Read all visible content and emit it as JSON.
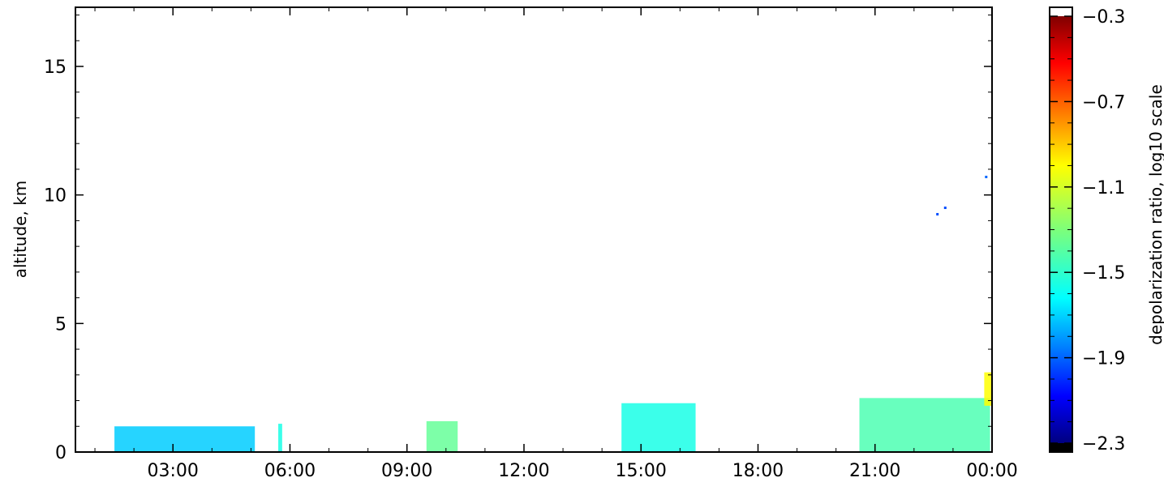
{
  "chart_data": {
    "type": "heatmap",
    "title": "",
    "xlabel": "",
    "ylabel": "altitude, km",
    "x_tick_labels": [
      "03:00",
      "06:00",
      "09:00",
      "12:00",
      "15:00",
      "18:00",
      "21:00",
      "00:00"
    ],
    "x_ticks_hours": [
      3,
      6,
      9,
      12,
      15,
      18,
      21,
      24
    ],
    "xlim_hours": [
      0.5,
      24
    ],
    "y_ticks": [
      0,
      5,
      10,
      15
    ],
    "ylim": [
      0,
      17.3
    ],
    "colorbar": {
      "label": "depolarization ratio, log10 scale",
      "tick_labels": [
        "−0.3",
        "−0.7",
        "−1.1",
        "−1.5",
        "−1.9",
        "−2.3"
      ],
      "ticks": [
        -0.3,
        -0.7,
        -1.1,
        -1.5,
        -1.9,
        -2.3
      ],
      "range": [
        -2.3,
        -0.3
      ],
      "colormap": "jet",
      "over_color": "#ffffff",
      "under_color": "#000000"
    },
    "regions": [
      {
        "x": [
          1.5,
          5.1
        ],
        "y": [
          0,
          1.0
        ],
        "value": -1.65
      },
      {
        "x": [
          5.7,
          5.8
        ],
        "y": [
          0,
          1.1
        ],
        "value": -1.5
      },
      {
        "x": [
          9.5,
          10.3
        ],
        "y": [
          0,
          1.2
        ],
        "value": -1.35
      },
      {
        "x": [
          14.5,
          16.4
        ],
        "y": [
          0,
          1.9
        ],
        "value": -1.5
      },
      {
        "x": [
          20.6,
          23.95
        ],
        "y": [
          0,
          2.1
        ],
        "value": -1.4
      },
      {
        "x": [
          23.8,
          24
        ],
        "y": [
          1.8,
          3.1
        ],
        "value": -1.05
      }
    ],
    "points": [
      {
        "x": 22.6,
        "y": 9.25,
        "value": -1.9
      },
      {
        "x": 22.8,
        "y": 9.5,
        "value": -1.9
      },
      {
        "x": 23.85,
        "y": 10.7,
        "value": -1.85
      }
    ]
  }
}
